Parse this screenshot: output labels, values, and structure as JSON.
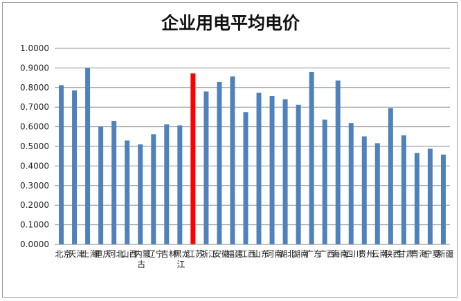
{
  "chart_data": {
    "type": "bar",
    "title": "企业用电平均电价",
    "xlabel": "",
    "ylabel": "",
    "ylim": [
      0,
      1.0
    ],
    "yticks": [
      "0.0000",
      "0.1000",
      "0.2000",
      "0.3000",
      "0.4000",
      "0.5000",
      "0.6000",
      "0.7000",
      "0.8000",
      "0.9000",
      "1.0000"
    ],
    "grid": true,
    "bar_color": "#4f81bd",
    "highlight_color": "#ff0000",
    "highlight_category": "江苏",
    "categories": [
      "北京",
      "天津",
      "上海",
      "重庆",
      "河北",
      "山西",
      "内蒙古",
      "辽宁",
      "吉林",
      "黑龙江",
      "江苏",
      "浙江",
      "安徽",
      "福建",
      "江西",
      "山东",
      "河南",
      "湖北",
      "湖南",
      "广东",
      "广西",
      "海南",
      "四川",
      "贵州",
      "云南",
      "陕西",
      "甘肃",
      "青海",
      "宁夏",
      "新疆"
    ],
    "values": [
      0.812,
      0.785,
      0.9,
      0.602,
      0.63,
      0.53,
      0.51,
      0.562,
      0.612,
      0.607,
      0.872,
      0.78,
      0.828,
      0.857,
      0.675,
      0.773,
      0.757,
      0.74,
      0.712,
      0.88,
      0.636,
      0.836,
      0.619,
      0.551,
      0.516,
      0.695,
      0.556,
      0.466,
      0.488,
      0.458
    ]
  }
}
